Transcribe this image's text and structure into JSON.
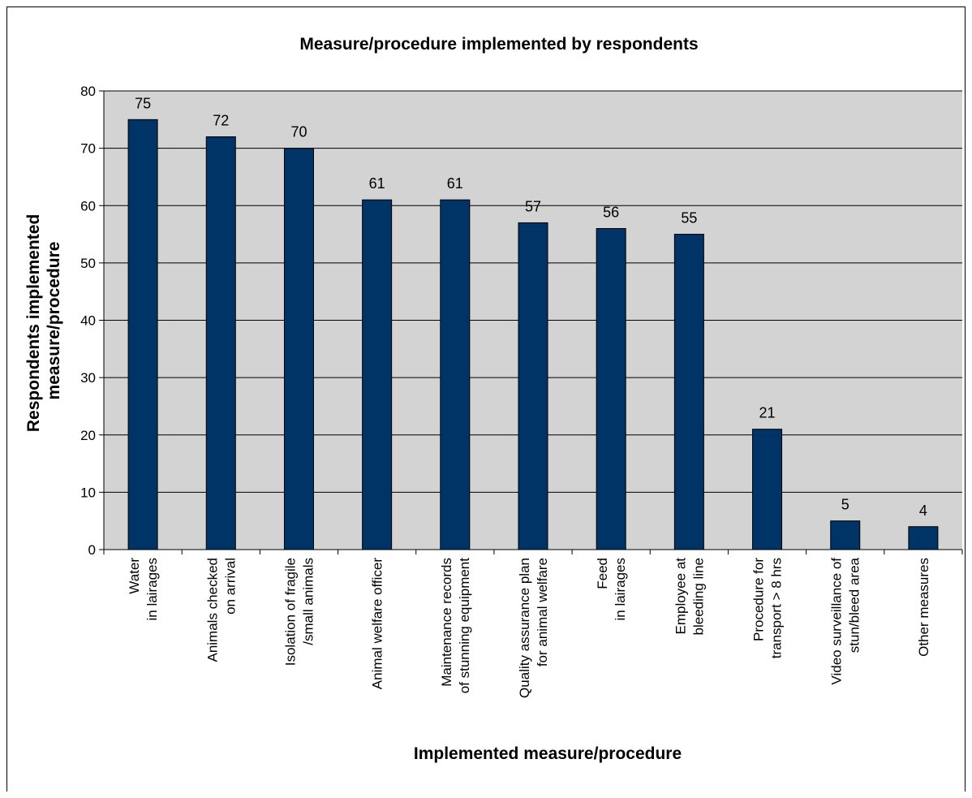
{
  "chart_data": {
    "type": "bar",
    "title": "Measure/procedure implemented by respondents",
    "xlabel": "Implemented measure/procedure",
    "ylabel_lines": [
      "Respondents implemented",
      "measure/procedure"
    ],
    "ylim": [
      0,
      80
    ],
    "yticks": [
      0,
      10,
      20,
      30,
      40,
      50,
      60,
      70,
      80
    ],
    "grid": true,
    "legend": "none",
    "categories": [
      [
        "Water",
        "in lairages"
      ],
      [
        "Animals checked",
        "on arrival"
      ],
      [
        "Isolation of fragile",
        "/small animals"
      ],
      [
        "Animal welfare officer"
      ],
      [
        "Maintenance records",
        "of stunning equipment"
      ],
      [
        "Quality assurance plan",
        "for animal welfare"
      ],
      [
        "Feed",
        "in lairages"
      ],
      [
        "Employee at",
        "bleeding line"
      ],
      [
        "Procedure for",
        "transport > 8 hrs"
      ],
      [
        "Video surveillance of",
        "stun/bleed area"
      ],
      [
        "Other measures"
      ]
    ],
    "values": [
      75,
      72,
      70,
      61,
      61,
      57,
      56,
      55,
      21,
      5,
      4
    ],
    "data_labels": [
      "75",
      "72",
      "70",
      "61",
      "61",
      "57",
      "56",
      "55",
      "21",
      "5",
      "4"
    ],
    "colors": {
      "bar": "#003366",
      "plot_background": "#d3d3d3",
      "gridline": "#000000"
    }
  }
}
